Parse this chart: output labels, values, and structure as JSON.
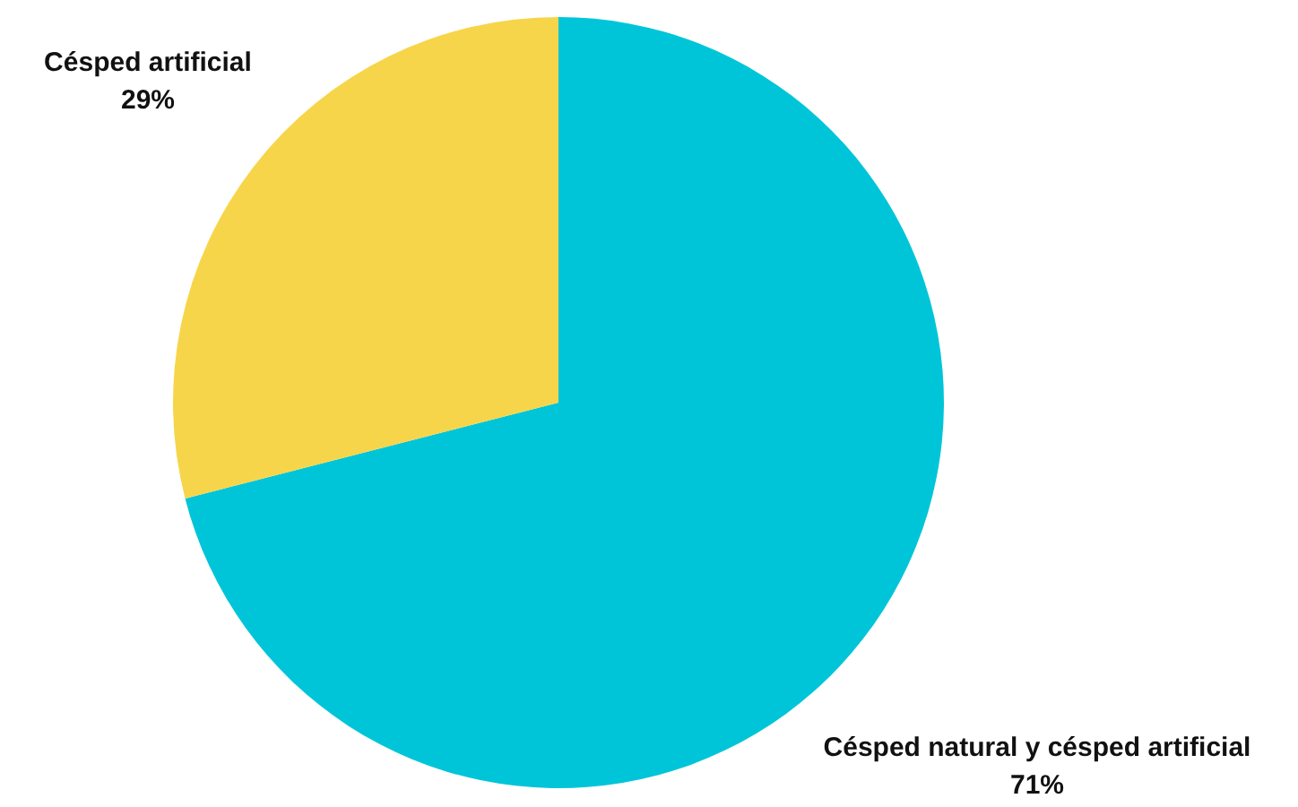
{
  "chart_data": {
    "type": "pie",
    "categories": [
      "Césped natural y césped artificial",
      "Césped artificial"
    ],
    "values": [
      71,
      29
    ],
    "colors": [
      "#00c5d8",
      "#f7d54a"
    ],
    "value_labels": [
      "71%",
      "29%"
    ]
  }
}
